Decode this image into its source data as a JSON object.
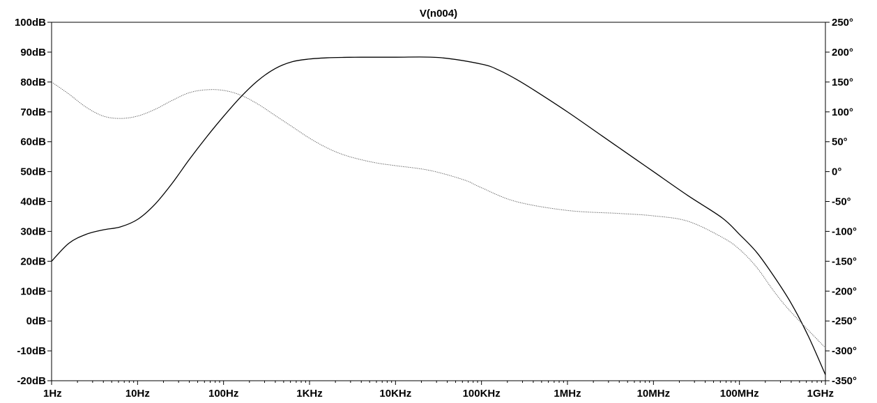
{
  "chart_data": {
    "type": "line",
    "title": "V(n004)",
    "xscale": "log",
    "xlim": [
      1,
      1000000000
    ],
    "ylim_left": [
      -20,
      100
    ],
    "ylim_right": [
      -350,
      250
    ],
    "x_ticks": [
      {
        "value": 1,
        "label": "1Hz"
      },
      {
        "value": 10,
        "label": "10Hz"
      },
      {
        "value": 100,
        "label": "100Hz"
      },
      {
        "value": 1000,
        "label": "1KHz"
      },
      {
        "value": 10000,
        "label": "10KHz"
      },
      {
        "value": 100000,
        "label": "100KHz"
      },
      {
        "value": 1000000,
        "label": "1MHz"
      },
      {
        "value": 10000000,
        "label": "10MHz"
      },
      {
        "value": 100000000,
        "label": "100MHz"
      },
      {
        "value": 1000000000,
        "label": "1GHz"
      }
    ],
    "y_ticks_left": [
      {
        "value": 100,
        "label": "100dB"
      },
      {
        "value": 90,
        "label": "90dB"
      },
      {
        "value": 80,
        "label": "80dB"
      },
      {
        "value": 70,
        "label": "70dB"
      },
      {
        "value": 60,
        "label": "60dB"
      },
      {
        "value": 50,
        "label": "50dB"
      },
      {
        "value": 40,
        "label": "40dB"
      },
      {
        "value": 30,
        "label": "30dB"
      },
      {
        "value": 20,
        "label": "20dB"
      },
      {
        "value": 10,
        "label": "10dB"
      },
      {
        "value": 0,
        "label": "0dB"
      },
      {
        "value": -10,
        "label": "-10dB"
      },
      {
        "value": -20,
        "label": "-20dB"
      }
    ],
    "y_ticks_right": [
      {
        "value": 250,
        "label": "250°"
      },
      {
        "value": 200,
        "label": "200°"
      },
      {
        "value": 150,
        "label": "150°"
      },
      {
        "value": 100,
        "label": "100°"
      },
      {
        "value": 50,
        "label": "50°"
      },
      {
        "value": 0,
        "label": "0°"
      },
      {
        "value": -50,
        "label": "-50°"
      },
      {
        "value": -100,
        "label": "-100°"
      },
      {
        "value": -150,
        "label": "-150°"
      },
      {
        "value": -200,
        "label": "-200°"
      },
      {
        "value": -250,
        "label": "-250°"
      },
      {
        "value": -300,
        "label": "-300°"
      },
      {
        "value": -350,
        "label": "-350°"
      }
    ],
    "grid": false,
    "series": [
      {
        "axis": "left",
        "style": "solid",
        "color": "#000000",
        "x": [
          1,
          1.585,
          2.512,
          3.981,
          6.31,
          10,
          15.85,
          25.12,
          39.81,
          63.1,
          100,
          158.5,
          251.2,
          398.1,
          631,
          1000,
          1585,
          2512,
          3981,
          10000,
          31620,
          100000,
          158500,
          251200,
          398100,
          1000000,
          2512000,
          6310000,
          10000000,
          25120000,
          63100000,
          100000000,
          158500000,
          251200000,
          398100000,
          631000000,
          1000000000
        ],
        "y": [
          20,
          26,
          29,
          30.5,
          31.5,
          34,
          39,
          46,
          54,
          61.5,
          68.5,
          75,
          80.5,
          84.5,
          86.8,
          87.7,
          88.1,
          88.25,
          88.3,
          88.3,
          88.2,
          86,
          84,
          81,
          77.5,
          70,
          62,
          54,
          50,
          42,
          34.5,
          29,
          23,
          15,
          6,
          -5,
          -18
        ]
      },
      {
        "axis": "right",
        "style": "dotted",
        "color": "#555555",
        "x": [
          1,
          1.585,
          2.512,
          3.981,
          6.31,
          10,
          15.85,
          25.12,
          39.81,
          63.1,
          100,
          158.5,
          251.2,
          398.1,
          631,
          1000,
          1585,
          2512,
          3981,
          6310,
          10000,
          25120,
          63100,
          100000,
          251200,
          1000000,
          3981000,
          10000000,
          25120000,
          63100000,
          100000000,
          158500000,
          251200000,
          398100000,
          1000000000
        ],
        "y": [
          150,
          130,
          108,
          93,
          89,
          93,
          104,
          119,
          132,
          137,
          136,
          128,
          113,
          94,
          75,
          56,
          40,
          28,
          20,
          14,
          10,
          2,
          -14,
          -27,
          -50,
          -65,
          -70,
          -74,
          -83,
          -110,
          -130,
          -160,
          -200,
          -235,
          -295
        ]
      }
    ]
  }
}
